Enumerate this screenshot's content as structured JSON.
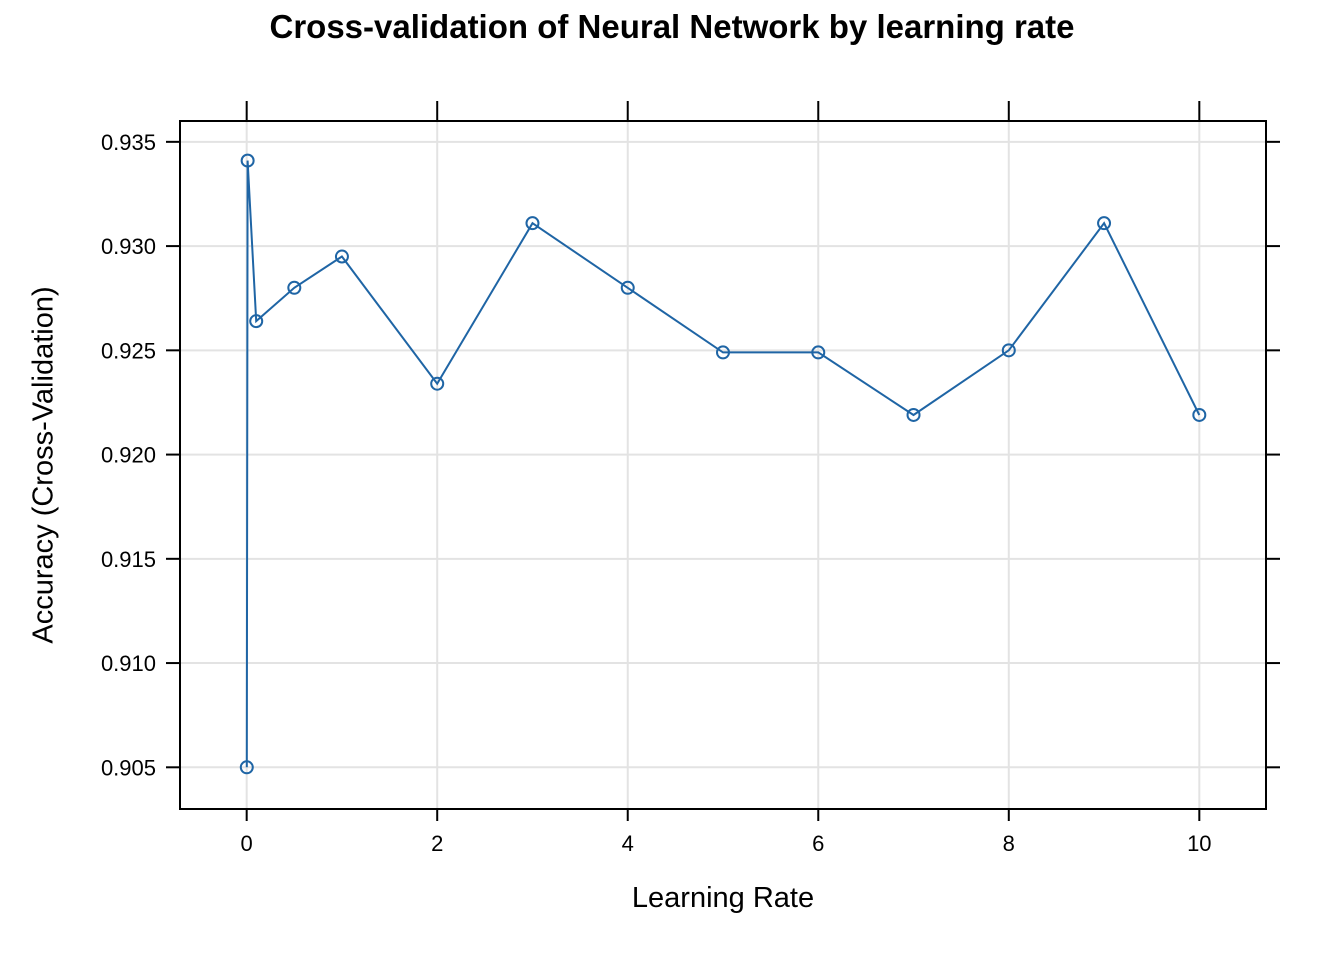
{
  "chart_data": {
    "type": "line",
    "title": "Cross-validation of Neural Network by learning rate",
    "xlabel": "Learning Rate",
    "ylabel": "Accuracy (Cross-Validation)",
    "x": [
      0.001,
      0.01,
      0.1,
      0.5,
      1,
      2,
      3,
      4,
      5,
      6,
      7,
      8,
      9,
      10
    ],
    "series": [
      {
        "values": [
          0.905,
          0.9341,
          0.9264,
          0.928,
          0.9295,
          0.9234,
          0.9311,
          0.928,
          0.9249,
          0.9249,
          0.9219,
          0.925,
          0.9311,
          0.9219
        ]
      }
    ],
    "xlim": [
      -0.7,
      10.7
    ],
    "ylim": [
      0.903,
      0.936
    ],
    "xticks": [
      0,
      2,
      4,
      6,
      8,
      10
    ],
    "xtick_labels": [
      "0",
      "2",
      "4",
      "6",
      "8",
      "10"
    ],
    "yticks": [
      0.905,
      0.91,
      0.915,
      0.92,
      0.925,
      0.93,
      0.935
    ],
    "ytick_labels": [
      "0.905",
      "0.910",
      "0.915",
      "0.920",
      "0.925",
      "0.930",
      "0.935"
    ],
    "grid": true,
    "colors": {
      "series": "#1f65a5",
      "grid": "#e3e3e3",
      "axis": "#000000"
    }
  }
}
